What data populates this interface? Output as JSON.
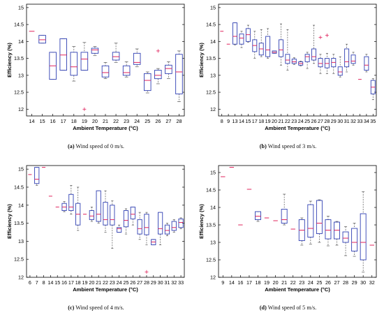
{
  "chart_data": [
    {
      "type": "box",
      "caption_letter": "(a)",
      "caption_text": "Wind speed of 0 m/s.",
      "xlabel": "Ambient Temperature (°C)",
      "ylabel": "Efficiency (%)",
      "ylim": [
        11.8,
        15.1
      ],
      "yticks": [
        12,
        12.5,
        13,
        13.5,
        14,
        14.5,
        15
      ],
      "categories": [
        "14",
        "15",
        "16",
        "17",
        "18",
        "19",
        "20",
        "21",
        "22",
        "23",
        "24",
        "25",
        "26",
        "27",
        "28"
      ],
      "boxes": [
        {
          "min": 14.3,
          "q1": 14.3,
          "median": 14.3,
          "q3": 14.3,
          "max": 14.3
        },
        {
          "min": 13.95,
          "q1": 13.95,
          "median": 14.05,
          "q3": 14.18,
          "max": 14.18
        },
        {
          "min": 12.88,
          "q1": 12.88,
          "median": 13.28,
          "q3": 13.68,
          "max": 13.68
        },
        {
          "min": 13.15,
          "q1": 13.15,
          "median": 13.6,
          "q3": 14.08,
          "max": 14.08
        },
        {
          "min": 12.83,
          "q1": 13.0,
          "median": 13.25,
          "q3": 13.68,
          "max": 13.85,
          "outliers": []
        },
        {
          "min": 13.15,
          "q1": 13.15,
          "median": 13.48,
          "q3": 13.68,
          "max": 13.97,
          "outliers": [
            12.0
          ]
        },
        {
          "min": 13.58,
          "q1": 13.65,
          "median": 13.75,
          "q3": 13.8,
          "max": 13.85
        },
        {
          "min": 12.9,
          "q1": 12.95,
          "median": 13.08,
          "q3": 13.28,
          "max": 13.38
        },
        {
          "min": 13.38,
          "q1": 13.45,
          "median": 13.55,
          "q3": 13.68,
          "max": 13.95
        },
        {
          "min": 12.95,
          "q1": 13.0,
          "median": 13.08,
          "q3": 13.28,
          "max": 13.4
        },
        {
          "min": 13.25,
          "q1": 13.32,
          "median": 13.38,
          "q3": 13.65,
          "max": 13.78
        },
        {
          "min": 12.48,
          "q1": 12.55,
          "median": 12.85,
          "q3": 13.05,
          "max": 13.1
        },
        {
          "min": 12.75,
          "q1": 12.9,
          "median": 13.0,
          "q3": 13.15,
          "max": 13.2,
          "outliers": [
            13.72
          ]
        },
        {
          "min": 12.9,
          "q1": 13.05,
          "median": 13.2,
          "q3": 13.3,
          "max": 13.4
        },
        {
          "min": 12.22,
          "q1": 12.45,
          "median": 13.1,
          "q3": 13.62,
          "max": 13.72
        }
      ]
    },
    {
      "type": "box",
      "caption_letter": "(b)",
      "caption_text": "Wind speed of 3 m/s.",
      "xlabel": "Ambient Temperature (°C)",
      "ylabel": "Efficiency (%)",
      "ylim": [
        11.8,
        15.1
      ],
      "yticks": [
        12,
        12.5,
        13,
        13.5,
        14,
        14.5,
        15
      ],
      "categories": [
        "8",
        "9",
        "13",
        "14",
        "15",
        "17",
        "18",
        "19",
        "20",
        "21",
        "22",
        "23",
        "24",
        "25",
        "26",
        "27",
        "28",
        "29",
        "30",
        "31",
        "32",
        "33",
        "34",
        "35"
      ],
      "boxes": [
        {
          "min": 14.3,
          "q1": 14.3,
          "median": 14.3,
          "q3": 14.3,
          "max": 14.3
        },
        {
          "min": 13.92,
          "q1": 13.92,
          "median": 13.92,
          "q3": 13.92,
          "max": 13.92
        },
        {
          "min": 13.9,
          "q1": 13.92,
          "median": 14.15,
          "q3": 14.55,
          "max": 14.55
        },
        {
          "min": 13.82,
          "q1": 13.92,
          "median": 14.1,
          "q3": 14.22,
          "max": 14.3
        },
        {
          "min": 13.98,
          "q1": 14.0,
          "median": 14.2,
          "q3": 14.38,
          "max": 14.48
        },
        {
          "min": 13.5,
          "q1": 13.7,
          "median": 13.88,
          "q3": 14.05,
          "max": 14.3
        },
        {
          "min": 13.55,
          "q1": 13.6,
          "median": 13.78,
          "q3": 13.95,
          "max": 14.35
        },
        {
          "min": 13.5,
          "q1": 13.55,
          "median": 13.75,
          "q3": 14.15,
          "max": 14.38
        },
        {
          "min": 13.65,
          "q1": 13.65,
          "median": 13.68,
          "q3": 13.72,
          "max": 13.72
        },
        {
          "min": 13.3,
          "q1": 13.55,
          "median": 13.75,
          "q3": 14.05,
          "max": 14.52
        },
        {
          "min": 13.15,
          "q1": 13.35,
          "median": 13.45,
          "q3": 13.62,
          "max": 14.35
        },
        {
          "min": 13.32,
          "q1": 13.35,
          "median": 13.4,
          "q3": 13.48,
          "max": 13.52
        },
        {
          "min": 13.28,
          "q1": 13.3,
          "median": 13.35,
          "q3": 13.4,
          "max": 13.42
        },
        {
          "min": 13.2,
          "q1": 13.4,
          "median": 13.55,
          "q3": 13.62,
          "max": 13.68
        },
        {
          "min": 13.35,
          "q1": 13.45,
          "median": 13.55,
          "q3": 13.78,
          "max": 14.48
        },
        {
          "min": 13.05,
          "q1": 13.25,
          "median": 13.35,
          "q3": 13.5,
          "max": 13.62,
          "outliers": [
            14.12
          ]
        },
        {
          "min": 13.05,
          "q1": 13.22,
          "median": 13.35,
          "q3": 13.5,
          "max": 13.65,
          "outliers": [
            14.18
          ]
        },
        {
          "min": 13.05,
          "q1": 13.25,
          "median": 13.38,
          "q3": 13.5,
          "max": 13.62
        },
        {
          "min": 12.95,
          "q1": 13.0,
          "median": 13.1,
          "q3": 13.25,
          "max": 13.55
        },
        {
          "min": 13.1,
          "q1": 13.25,
          "median": 13.4,
          "q3": 13.78,
          "max": 13.92
        },
        {
          "min": 13.3,
          "q1": 13.35,
          "median": 13.42,
          "q3": 13.6,
          "max": 13.68
        },
        {
          "min": 12.88,
          "q1": 12.88,
          "median": 12.88,
          "q3": 12.88,
          "max": 12.88
        },
        {
          "min": 13.1,
          "q1": 13.15,
          "median": 13.3,
          "q3": 13.55,
          "max": 13.62
        },
        {
          "min": 12.28,
          "q1": 12.45,
          "median": 12.65,
          "q3": 12.85,
          "max": 12.9
        }
      ]
    },
    {
      "type": "box",
      "caption_letter": "(c)",
      "caption_text": "Wind speed of 4 m/s.",
      "xlabel": "Ambient Temperature (°C)",
      "ylabel": "Efficiency (%)",
      "ylim": [
        12.0,
        15.1
      ],
      "yticks": [
        12,
        12.5,
        13,
        13.5,
        14,
        14.5,
        15
      ],
      "categories": [
        "6",
        "7",
        "8",
        "14",
        "15",
        "16",
        "17",
        "18",
        "19",
        "20",
        "21",
        "22",
        "23",
        "24",
        "25",
        "26",
        "27",
        "28",
        "29",
        "30",
        "31",
        "32",
        "33"
      ],
      "boxes": [
        {
          "min": 14.85,
          "q1": 14.85,
          "median": 14.85,
          "q3": 14.85,
          "max": 14.85
        },
        {
          "min": 14.55,
          "q1": 14.6,
          "median": 14.72,
          "q3": 15.05,
          "max": 15.05
        },
        {
          "min": 15.05,
          "q1": 15.05,
          "median": 15.05,
          "q3": 15.05,
          "max": 15.05
        },
        {
          "min": 14.25,
          "q1": 14.25,
          "median": 14.25,
          "q3": 14.25,
          "max": 14.25
        },
        {
          "min": 13.95,
          "q1": 13.95,
          "median": 13.95,
          "q3": 13.95,
          "max": 13.95
        },
        {
          "min": 13.82,
          "q1": 13.85,
          "median": 13.95,
          "q3": 14.05,
          "max": 14.1
        },
        {
          "min": 13.75,
          "q1": 13.85,
          "median": 13.95,
          "q3": 14.3,
          "max": 14.55
        },
        {
          "min": 13.3,
          "q1": 13.45,
          "median": 13.75,
          "q3": 14.05,
          "max": 14.5
        },
        {
          "min": 13.75,
          "q1": 13.75,
          "median": 13.75,
          "q3": 13.75,
          "max": 13.75
        },
        {
          "min": 13.55,
          "q1": 13.6,
          "median": 13.7,
          "q3": 13.85,
          "max": 13.95
        },
        {
          "min": 13.5,
          "q1": 13.55,
          "median": 13.75,
          "q3": 14.4,
          "max": 14.4
        },
        {
          "min": 13.25,
          "q1": 13.45,
          "median": 13.6,
          "q3": 14.08,
          "max": 14.4
        },
        {
          "min": 12.8,
          "q1": 13.45,
          "median": 13.6,
          "q3": 14.0,
          "max": 14.12
        },
        {
          "min": 13.25,
          "q1": 13.25,
          "median": 13.35,
          "q3": 13.38,
          "max": 13.45
        },
        {
          "min": 13.2,
          "q1": 13.4,
          "median": 13.58,
          "q3": 13.85,
          "max": 13.9
        },
        {
          "min": 13.45,
          "q1": 13.62,
          "median": 13.75,
          "q3": 13.95,
          "max": 13.95
        },
        {
          "min": 13.05,
          "q1": 13.2,
          "median": 13.35,
          "q3": 13.6,
          "max": 13.8
        },
        {
          "min": 12.9,
          "q1": 13.18,
          "median": 13.38,
          "q3": 13.75,
          "max": 13.8,
          "outliers": [
            12.15
          ]
        },
        {
          "min": 12.9,
          "q1": 12.9,
          "median": 12.98,
          "q3": 13.05,
          "max": 13.05
        },
        {
          "min": 12.9,
          "q1": 13.2,
          "median": 13.35,
          "q3": 13.8,
          "max": 13.8
        },
        {
          "min": 13.15,
          "q1": 13.2,
          "median": 13.3,
          "q3": 13.45,
          "max": 13.5
        },
        {
          "min": 13.25,
          "q1": 13.3,
          "median": 13.38,
          "q3": 13.55,
          "max": 13.6
        },
        {
          "min": 13.35,
          "q1": 13.38,
          "median": 13.52,
          "q3": 13.62,
          "max": 13.65
        }
      ]
    },
    {
      "type": "box",
      "caption_letter": "(d)",
      "caption_text": "Wind speed of 5 m/s.",
      "xlabel": "Ambient Temperature (°C)",
      "ylabel": "Efficiency (%)",
      "ylim": [
        12.0,
        15.2
      ],
      "yticks": [
        12,
        12.5,
        13,
        13.5,
        14,
        14.5,
        15
      ],
      "categories": [
        "9",
        "14",
        "16",
        "17",
        "18",
        "19",
        "20",
        "21",
        "22",
        "23",
        "24",
        "25",
        "26",
        "27",
        "28",
        "29",
        "30",
        "32"
      ],
      "boxes": [
        {
          "min": 14.88,
          "q1": 14.88,
          "median": 14.88,
          "q3": 14.88,
          "max": 14.88
        },
        {
          "min": 15.15,
          "q1": 15.15,
          "median": 15.15,
          "q3": 15.15,
          "max": 15.15
        },
        {
          "min": 13.5,
          "q1": 13.5,
          "median": 13.5,
          "q3": 13.5,
          "max": 13.5
        },
        {
          "min": 14.52,
          "q1": 14.52,
          "median": 14.52,
          "q3": 14.52,
          "max": 14.52
        },
        {
          "min": 13.6,
          "q1": 13.65,
          "median": 13.75,
          "q3": 13.88,
          "max": 13.88
        },
        {
          "min": 13.7,
          "q1": 13.7,
          "median": 13.7,
          "q3": 13.7,
          "max": 13.7
        },
        {
          "min": 13.62,
          "q1": 13.62,
          "median": 13.62,
          "q3": 13.62,
          "max": 13.62
        },
        {
          "min": 13.5,
          "q1": 13.55,
          "median": 13.65,
          "q3": 13.95,
          "max": 14.38
        },
        {
          "min": 13.38,
          "q1": 13.38,
          "median": 13.38,
          "q3": 13.38,
          "max": 13.38
        },
        {
          "min": 12.92,
          "q1": 13.05,
          "median": 13.35,
          "q3": 13.65,
          "max": 13.7
        },
        {
          "min": 12.95,
          "q1": 13.15,
          "median": 13.4,
          "q3": 14.08,
          "max": 14.18
        },
        {
          "min": 13.0,
          "q1": 13.25,
          "median": 13.55,
          "q3": 14.2,
          "max": 14.22
        },
        {
          "min": 12.9,
          "q1": 13.1,
          "median": 13.35,
          "q3": 13.65,
          "max": 13.75
        },
        {
          "min": 12.92,
          "q1": 13.1,
          "median": 13.35,
          "q3": 13.58,
          "max": 13.6
        },
        {
          "min": 12.62,
          "q1": 13.0,
          "median": 13.12,
          "q3": 13.3,
          "max": 13.45
        },
        {
          "min": 12.6,
          "q1": 12.75,
          "median": 13.0,
          "q3": 13.4,
          "max": 13.55
        },
        {
          "min": 12.15,
          "q1": 12.5,
          "median": 13.0,
          "q3": 13.82,
          "max": 14.45
        },
        {
          "min": 12.92,
          "q1": 12.92,
          "median": 12.92,
          "q3": 12.92,
          "max": 12.92
        }
      ]
    }
  ]
}
